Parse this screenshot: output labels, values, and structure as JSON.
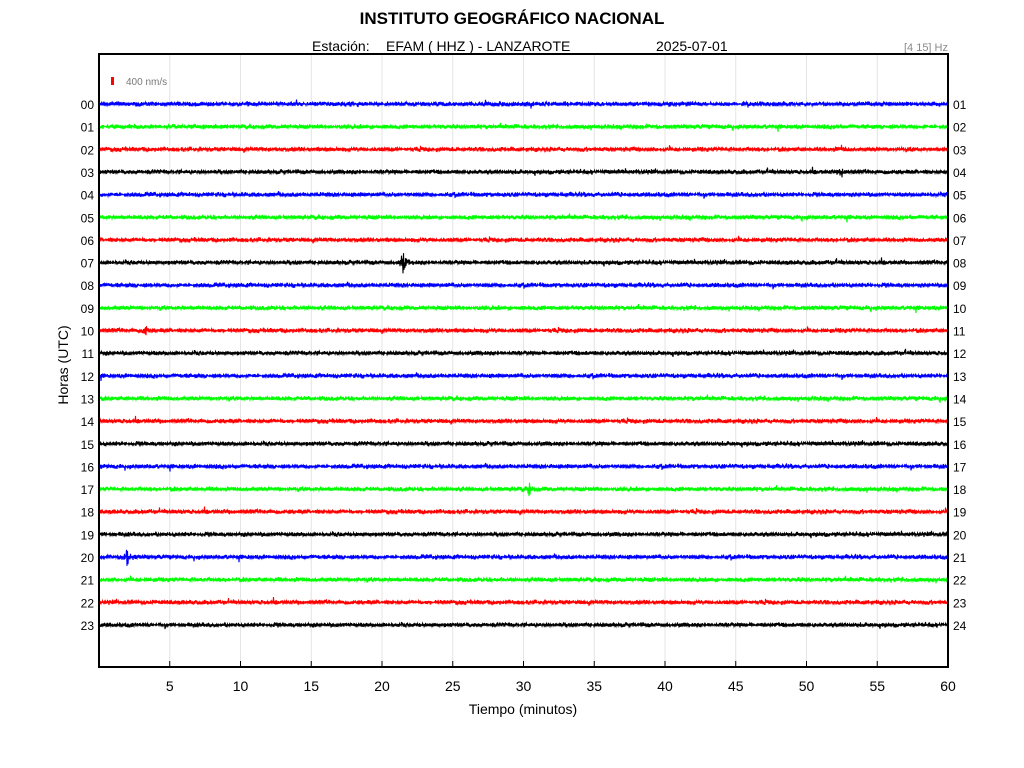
{
  "header": {
    "title": "INSTITUTO GEOGRÁFICO NACIONAL",
    "station_label": "Estación:",
    "station": "EFAM ( HHZ ) - LANZAROTE",
    "date": "2025-07-01",
    "filter": "[4 15] Hz"
  },
  "scale": {
    "label": "400 nm/s",
    "color": "#ff0000"
  },
  "colors": [
    "#0000ff",
    "#00ff00",
    "#ff0000",
    "#000000"
  ],
  "chart_data": {
    "type": "line",
    "title": "INSTITUTO GEOGRÁFICO NACIONAL",
    "xlabel": "Tiempo (minutos)",
    "ylabel": "Horas (UTC)",
    "xlim": [
      0,
      60
    ],
    "x_ticks": [
      5,
      10,
      15,
      20,
      25,
      30,
      35,
      40,
      45,
      50,
      55,
      60
    ],
    "grid": "vertical",
    "left_labels": [
      "00",
      "01",
      "02",
      "03",
      "04",
      "05",
      "06",
      "07",
      "08",
      "09",
      "10",
      "11",
      "12",
      "13",
      "14",
      "15",
      "16",
      "17",
      "18",
      "19",
      "20",
      "21",
      "22",
      "23"
    ],
    "right_labels": [
      "01",
      "02",
      "03",
      "04",
      "05",
      "06",
      "07",
      "08",
      "09",
      "10",
      "11",
      "12",
      "13",
      "14",
      "15",
      "16",
      "17",
      "18",
      "19",
      "20",
      "21",
      "22",
      "23",
      "24"
    ],
    "events": [
      {
        "hour": 7,
        "minute": 21.5,
        "amplitude": 1.0
      },
      {
        "hour": 10,
        "minute": 3.3,
        "amplitude": 0.4
      },
      {
        "hour": 17,
        "minute": 30.4,
        "amplitude": 0.6
      },
      {
        "hour": 20,
        "minute": 2.0,
        "amplitude": 0.8
      },
      {
        "hour": 3,
        "minute": 52.5,
        "amplitude": 0.4
      },
      {
        "hour": 2,
        "minute": 52.5,
        "amplitude": 0.35
      }
    ]
  }
}
